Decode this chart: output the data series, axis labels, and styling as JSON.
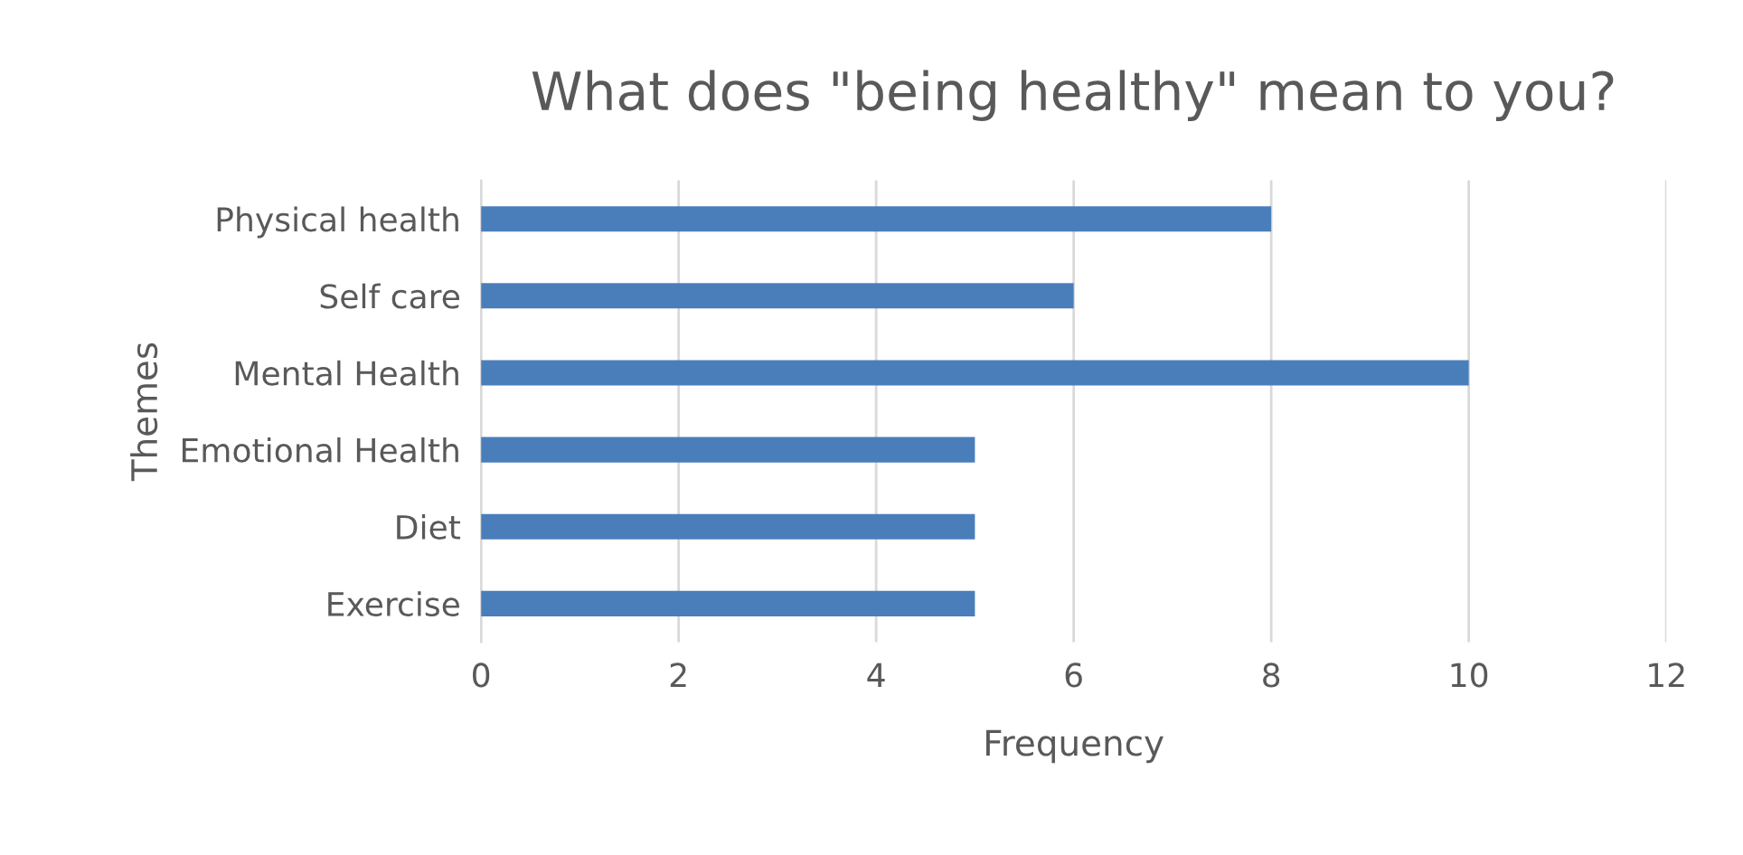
{
  "chart_data": {
    "type": "bar",
    "orientation": "horizontal",
    "title": "What does \"being healthy\" mean to you?",
    "xlabel": "Frequency",
    "ylabel": "Themes",
    "categories": [
      "Physical health",
      "Self care",
      "Mental Health",
      "Emotional Health",
      "Diet",
      "Exercise"
    ],
    "values": [
      8,
      6,
      10,
      5,
      5,
      5
    ],
    "color": "#4a7ebb",
    "xlim": [
      0,
      12
    ],
    "xticks": [
      0,
      2,
      4,
      6,
      8,
      10,
      12
    ],
    "grid": "x",
    "legend": false
  }
}
